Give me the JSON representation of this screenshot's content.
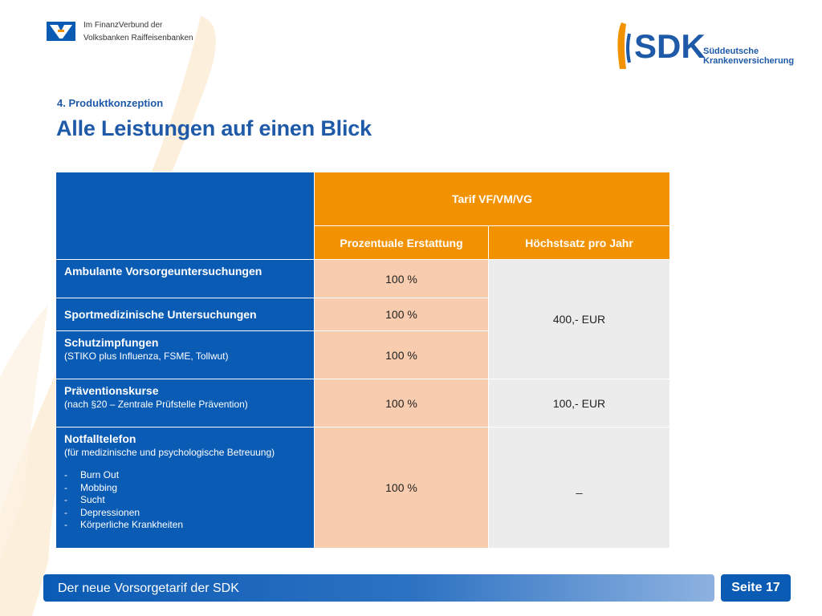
{
  "header": {
    "vb_line1": "Im FinanzVerbund der",
    "vb_line2": "Volksbanken Raiffeisenbanken",
    "sdk_logo_text": "SDK",
    "sdk_sub1": "Süddeutsche",
    "sdk_sub2": "Krankenversicherung"
  },
  "section_label": "4. Produktkonzeption",
  "title": "Alle Leistungen auf einen Blick",
  "table": {
    "tarif_header": "Tarif VF/VM/VG",
    "col_percent": "Prozentuale Erstattung",
    "col_max": "Höchstsatz pro Jahr",
    "rows": [
      {
        "label": "Ambulante Vorsorgeuntersuchungen",
        "percent": "100 %"
      },
      {
        "label": "Sportmedizinische Untersuchungen",
        "percent": "100 %"
      },
      {
        "label": "Schutzimpfungen",
        "sub": "(STIKO plus Influenza, FSME, Tollwut)",
        "percent": "100 %"
      },
      {
        "label": "Präventionskurse",
        "sub": "(nach §20 – Zentrale Prüfstelle Prävention)",
        "percent": "100 %",
        "max": "100,- EUR"
      },
      {
        "label": "Notfalltelefon",
        "sub": "(für medizinische und psychologische Betreuung)",
        "percent": "100 %",
        "max": "_",
        "items": [
          "Burn Out",
          "Mobbing",
          "Sucht",
          "Depressionen",
          "Körperliche Krankheiten"
        ]
      }
    ],
    "shared_max": "400,- EUR"
  },
  "footer": {
    "text": "Der neue Vorsorgetarif der SDK",
    "page": "Seite 17"
  },
  "colors": {
    "blue": "#0a5bb4",
    "orange": "#f39200",
    "peach": "#f8ccae",
    "grey": "#ececec"
  }
}
